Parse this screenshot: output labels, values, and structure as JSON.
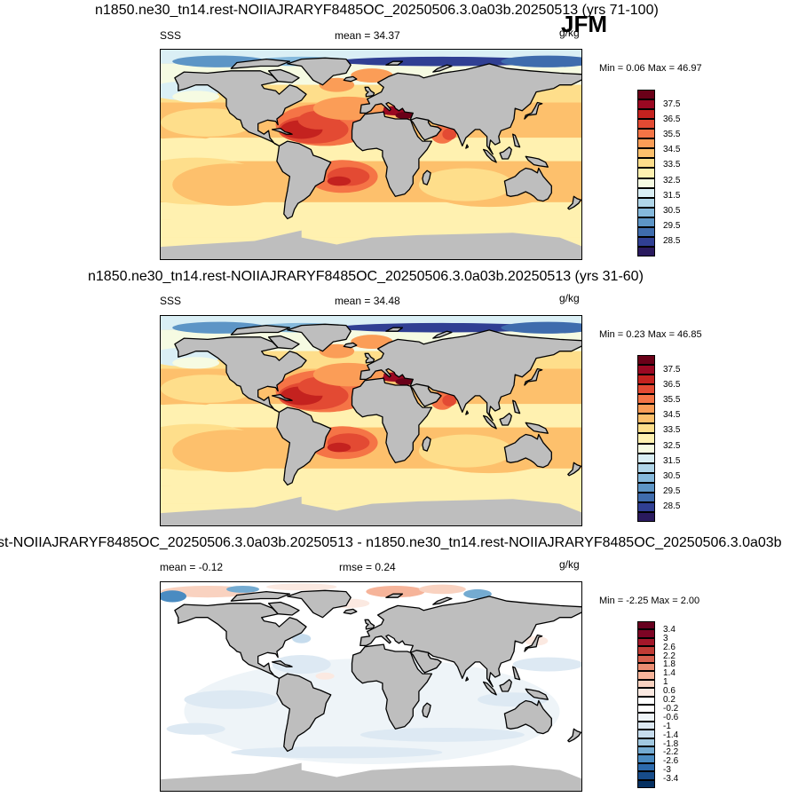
{
  "season": "JFM",
  "panels": [
    {
      "title": "n1850.ne30_tn14.rest-NOIIAJRARYF8485OC_20250506.3.0a03b.20250513 (yrs 71-100)",
      "left_label": "SSS",
      "mean_text": "mean =  34.37",
      "rmse_text": "",
      "units": "g/kg",
      "minmax": "Min =   0.06 Max =  46.97",
      "kind": "abs",
      "colors": [
        "#2a1a5e",
        "#303f93",
        "#3f6cad",
        "#5d95c6",
        "#85b9dc",
        "#b0d6e9",
        "#daeff5",
        "#f6fbe2",
        "#fff1b0",
        "#fede8b",
        "#fdc06c",
        "#fb9d57",
        "#f57446",
        "#e34a33",
        "#c4221f",
        "#9a0822",
        "#6a0018"
      ],
      "labels": [
        "37.5",
        "36.5",
        "35.5",
        "34.5",
        "33.5",
        "32.5",
        "31.5",
        "30.5",
        "29.5",
        "28.5"
      ]
    },
    {
      "title": "n1850.ne30_tn14.rest-NOIIAJRARYF8485OC_20250506.3.0a03b.20250513 (yrs 31-60)",
      "left_label": "SSS",
      "mean_text": "mean =  34.48",
      "rmse_text": "",
      "units": "g/kg",
      "minmax": "Min =   0.23 Max =  46.85",
      "kind": "abs",
      "colors": [
        "#2a1a5e",
        "#303f93",
        "#3f6cad",
        "#5d95c6",
        "#85b9dc",
        "#b0d6e9",
        "#daeff5",
        "#f6fbe2",
        "#fff1b0",
        "#fede8b",
        "#fdc06c",
        "#fb9d57",
        "#f57446",
        "#e34a33",
        "#c4221f",
        "#9a0822",
        "#6a0018"
      ],
      "labels": [
        "37.5",
        "36.5",
        "35.5",
        "34.5",
        "33.5",
        "32.5",
        "31.5",
        "30.5",
        "29.5",
        "28.5"
      ]
    },
    {
      "title": "st-NOIIAJRARYF8485OC_20250506.3.0a03b.20250513 - n1850.ne30_tn14.rest-NOIIAJRARYF8485OC_20250506.3.0a03b",
      "left_label": "",
      "mean_text": "mean =  -0.12",
      "rmse_text": "rmse =   0.24",
      "units": "g/kg",
      "minmax": "Min =  -2.25 Max =   2.00",
      "kind": "diff",
      "colors": [
        "#053061",
        "#174c8a",
        "#2c6aac",
        "#4a8bc1",
        "#74abd1",
        "#a1c8e0",
        "#c6dced",
        "#dde9f3",
        "#eef4f8",
        "#ffffff",
        "#ffffff",
        "#fbe9e1",
        "#f9d2c0",
        "#f6b49a",
        "#ea8d72",
        "#d7604e",
        "#c03b35",
        "#a3172a",
        "#7d0424",
        "#67001f"
      ],
      "labels": [
        "3.4",
        "3",
        "2.6",
        "2.2",
        "1.8",
        "1.4",
        "1",
        "0.6",
        "0.2",
        "-0.2",
        "-0.6",
        "-1",
        "-1.4",
        "-1.8",
        "-2.2",
        "-2.6",
        "-3",
        "-3.4"
      ]
    }
  ]
}
